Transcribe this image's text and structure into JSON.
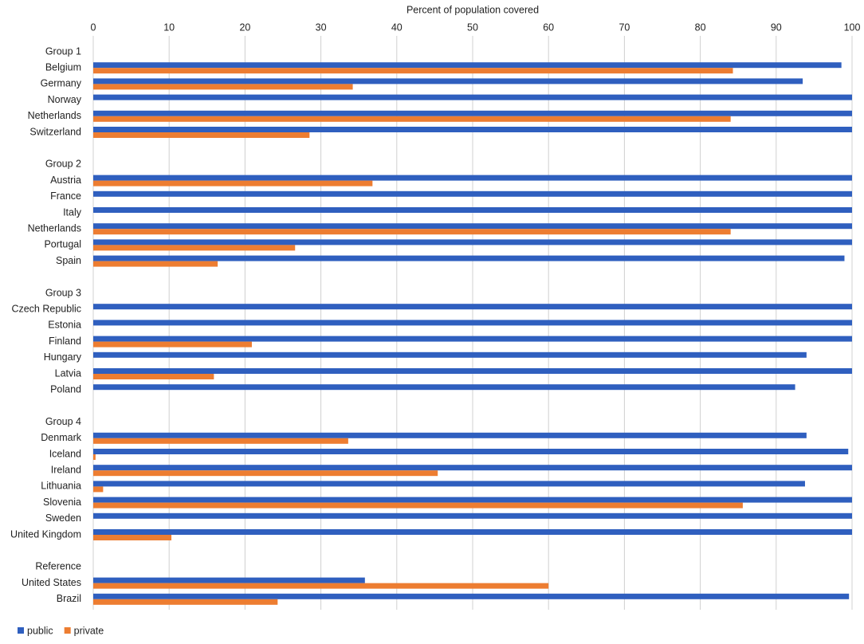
{
  "chart_data": {
    "type": "hbar",
    "title": "Percent of population covered",
    "categories": [
      "Group 1",
      "Belgium",
      "Germany",
      "Norway",
      "Netherlands",
      "Switzerland",
      null,
      "Group 2",
      "Austria",
      "France",
      "Italy",
      "Netherlands",
      "Portugal",
      "Spain",
      null,
      "Group 3",
      "Czech Republic",
      "Estonia",
      "Finland",
      "Hungary",
      "Latvia",
      "Poland",
      null,
      "Group 4",
      "Denmark",
      "Iceland",
      "Ireland",
      "Lithuania",
      "Slovenia",
      "Sweden",
      "United Kingdom",
      null,
      "Reference",
      "United States",
      "Brazil"
    ],
    "series": [
      {
        "name": "public",
        "color": "#2f5fbf",
        "values": [
          null,
          98.6,
          93.5,
          100,
          100,
          100,
          null,
          null,
          100,
          100,
          100,
          100,
          100,
          99.0,
          null,
          null,
          100,
          100,
          100,
          94.0,
          100,
          92.5,
          null,
          null,
          94.0,
          99.5,
          100,
          93.8,
          100,
          100,
          100,
          null,
          null,
          35.8,
          99.6
        ]
      },
      {
        "name": "private",
        "color": "#ed7d31",
        "values": [
          null,
          84.3,
          34.2,
          null,
          84.0,
          28.5,
          null,
          null,
          36.8,
          null,
          null,
          84.0,
          26.6,
          16.4,
          null,
          null,
          null,
          null,
          20.9,
          null,
          15.9,
          null,
          null,
          null,
          33.6,
          0.3,
          45.4,
          1.3,
          85.6,
          null,
          10.3,
          null,
          null,
          60.0,
          24.3
        ]
      }
    ],
    "xlim": [
      0,
      100
    ],
    "xticks": [
      0,
      10,
      20,
      30,
      40,
      50,
      60,
      70,
      80,
      90,
      100
    ],
    "grid": true,
    "legend": "bottom-left"
  }
}
